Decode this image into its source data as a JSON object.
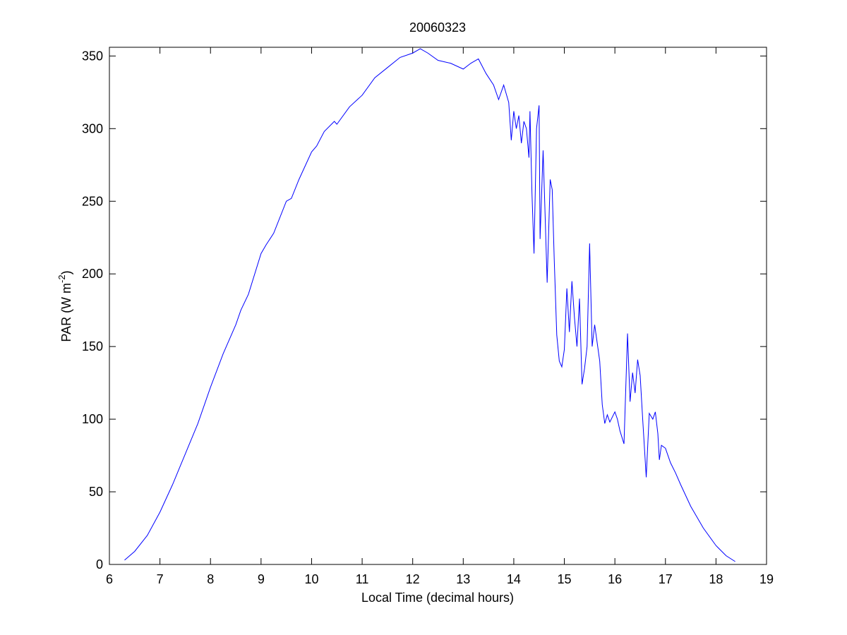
{
  "chart_data": {
    "type": "line",
    "title": "20060323",
    "xlabel": "Local Time (decimal hours)",
    "ylabel": [
      "PAR (W m",
      "-2",
      ")"
    ],
    "xlim": [
      6,
      19
    ],
    "ylim": [
      0,
      356
    ],
    "xticks": [
      6,
      7,
      8,
      9,
      10,
      11,
      12,
      13,
      14,
      15,
      16,
      17,
      18,
      19
    ],
    "yticks": [
      0,
      50,
      100,
      150,
      200,
      250,
      300,
      350
    ],
    "grid": false,
    "series": [
      {
        "color": "#0000ff",
        "x": [
          6.3,
          6.5,
          6.75,
          7.0,
          7.25,
          7.5,
          7.75,
          8.0,
          8.25,
          8.5,
          8.6,
          8.75,
          9.0,
          9.1,
          9.25,
          9.5,
          9.6,
          9.75,
          10.0,
          10.1,
          10.25,
          10.45,
          10.5,
          10.75,
          11.0,
          11.25,
          11.5,
          11.75,
          12.0,
          12.15,
          12.3,
          12.5,
          12.75,
          13.0,
          13.15,
          13.3,
          13.45,
          13.6,
          13.7,
          13.8,
          13.9,
          13.95,
          14.0,
          14.05,
          14.1,
          14.15,
          14.2,
          14.25,
          14.3,
          14.32,
          14.36,
          14.4,
          14.45,
          14.5,
          14.52,
          14.58,
          14.62,
          14.66,
          14.72,
          14.76,
          14.8,
          14.85,
          14.9,
          14.95,
          15.0,
          15.05,
          15.1,
          15.15,
          15.2,
          15.25,
          15.3,
          15.35,
          15.4,
          15.45,
          15.5,
          15.55,
          15.6,
          15.7,
          15.75,
          15.8,
          15.85,
          15.9,
          16.0,
          16.05,
          16.1,
          16.18,
          16.25,
          16.3,
          16.35,
          16.4,
          16.45,
          16.5,
          16.55,
          16.62,
          16.68,
          16.75,
          16.8,
          16.85,
          16.88,
          16.92,
          17.0,
          17.1,
          17.2,
          17.3,
          17.5,
          17.75,
          18.0,
          18.2,
          18.38
        ],
        "values": [
          3,
          9,
          20,
          36,
          55,
          76,
          97,
          122,
          145,
          165,
          175,
          186,
          214,
          220,
          228,
          250,
          252,
          265,
          284,
          288,
          298,
          305,
          303,
          315,
          323,
          335,
          342,
          349,
          352,
          355,
          352,
          347,
          345,
          341,
          345,
          348,
          338,
          330,
          320,
          330,
          318,
          292,
          312,
          300,
          309,
          290,
          305,
          300,
          280,
          312,
          255,
          214,
          300,
          316,
          224,
          285,
          240,
          194,
          265,
          258,
          210,
          158,
          140,
          136,
          148,
          190,
          160,
          195,
          170,
          150,
          183,
          124,
          135,
          150,
          221,
          150,
          165,
          140,
          110,
          97,
          103,
          98,
          105,
          100,
          92,
          83,
          159,
          112,
          132,
          118,
          141,
          130,
          100,
          60,
          104,
          100,
          105,
          90,
          72,
          82,
          80,
          70,
          63,
          55,
          40,
          25,
          13,
          6,
          2
        ]
      }
    ]
  }
}
